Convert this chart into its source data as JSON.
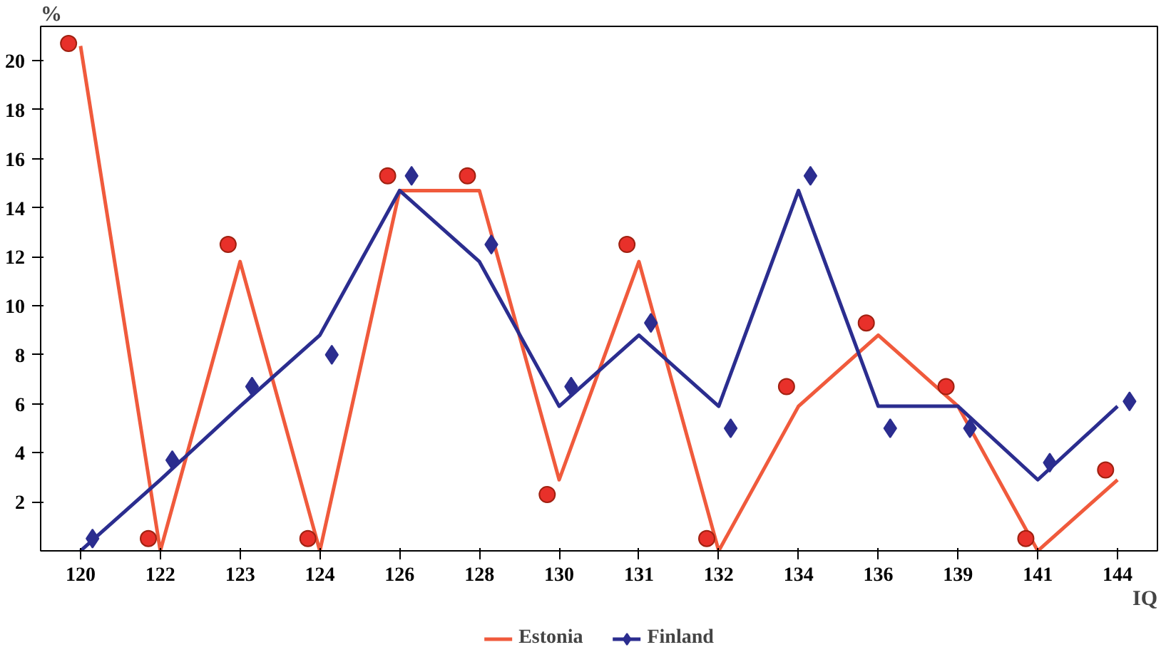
{
  "chart_data": {
    "type": "line",
    "ylabel": "%",
    "xlabel": "IQ",
    "categories": [
      "120",
      "122",
      "123",
      "124",
      "126",
      "128",
      "130",
      "131",
      "132",
      "134",
      "136",
      "139",
      "141",
      "144"
    ],
    "ylim": [
      0,
      21.4
    ],
    "yticks": [
      2,
      4,
      6,
      8,
      10,
      12,
      14,
      16,
      18,
      20
    ],
    "grid": false,
    "legend": "bottom",
    "line_style": "solid",
    "series": [
      {
        "name": "Estonia",
        "color": "#f05a3c",
        "marker": "none",
        "values": [
          20.6,
          0,
          11.8,
          0,
          14.7,
          14.7,
          2.9,
          11.8,
          0,
          5.9,
          8.8,
          5.9,
          0,
          2.9
        ]
      },
      {
        "name": "Finland",
        "color": "#2b2d8f",
        "marker": "none",
        "values": [
          0,
          2.9,
          5.9,
          8.8,
          14.7,
          11.8,
          5.9,
          8.8,
          5.9,
          14.7,
          5.9,
          5.9,
          2.9,
          5.9
        ]
      },
      {
        "type": "scatter",
        "color": "#e8302a",
        "marker": "circle",
        "x": [
          "120",
          "122",
          "123",
          "124",
          "126",
          "128",
          "130",
          "131",
          "132",
          "134",
          "136",
          "139",
          "141",
          "144"
        ],
        "values": [
          20.7,
          0.5,
          12.5,
          0.5,
          15.3,
          15.3,
          2.3,
          12.5,
          0.5,
          6.7,
          9.3,
          6.7,
          0.5,
          3.3
        ]
      },
      {
        "type": "scatter",
        "color": "#2b2d8f",
        "marker": "diamond",
        "x": [
          "120",
          "122",
          "123",
          "124",
          "126",
          "128",
          "130",
          "131",
          "132",
          "134",
          "136",
          "139",
          "141",
          "144"
        ],
        "values": [
          0.5,
          3.7,
          6.7,
          8.0,
          15.3,
          12.5,
          6.7,
          9.3,
          5.0,
          15.3,
          5.0,
          5.0,
          3.6,
          6.1
        ]
      }
    ]
  }
}
